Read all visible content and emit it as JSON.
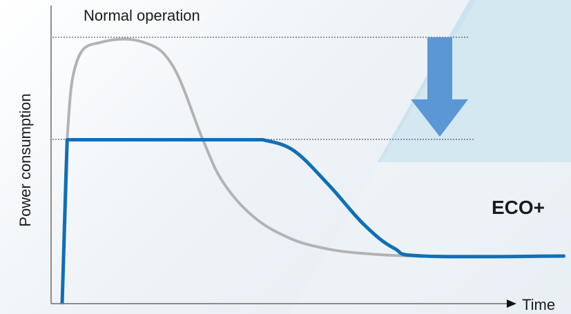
{
  "chart_data": {
    "type": "line",
    "title": "",
    "xlabel": "Time",
    "ylabel": "Power consumption",
    "grid": false,
    "legend": "none",
    "series": [
      {
        "name": "Normal operation",
        "color": "#b3b3b3",
        "points": [
          [
            0.0,
            0.0
          ],
          [
            0.01,
            0.62
          ],
          [
            0.03,
            0.92
          ],
          [
            0.08,
            0.99
          ],
          [
            0.16,
            0.99
          ],
          [
            0.22,
            0.9
          ],
          [
            0.28,
            0.62
          ],
          [
            0.32,
            0.46
          ],
          [
            0.38,
            0.33
          ],
          [
            0.45,
            0.25
          ],
          [
            0.52,
            0.21
          ],
          [
            0.6,
            0.19
          ],
          [
            0.72,
            0.18
          ],
          [
            1.0,
            0.18
          ]
        ]
      },
      {
        "name": "ECO+",
        "color": "#0f6fb8",
        "points": [
          [
            0.0,
            0.0
          ],
          [
            0.01,
            0.62
          ],
          [
            0.4,
            0.62
          ],
          [
            0.46,
            0.58
          ],
          [
            0.53,
            0.45
          ],
          [
            0.6,
            0.3
          ],
          [
            0.66,
            0.21
          ],
          [
            0.72,
            0.18
          ],
          [
            1.0,
            0.18
          ]
        ]
      }
    ],
    "annotations": {
      "normal_label": "Normal operation",
      "eco_label": "ECO+",
      "arrow": "down",
      "arrow_color": "#5b97d4",
      "highlight_color": "#c6e1ed",
      "reference_lines": [
        0.99,
        0.62
      ]
    }
  }
}
